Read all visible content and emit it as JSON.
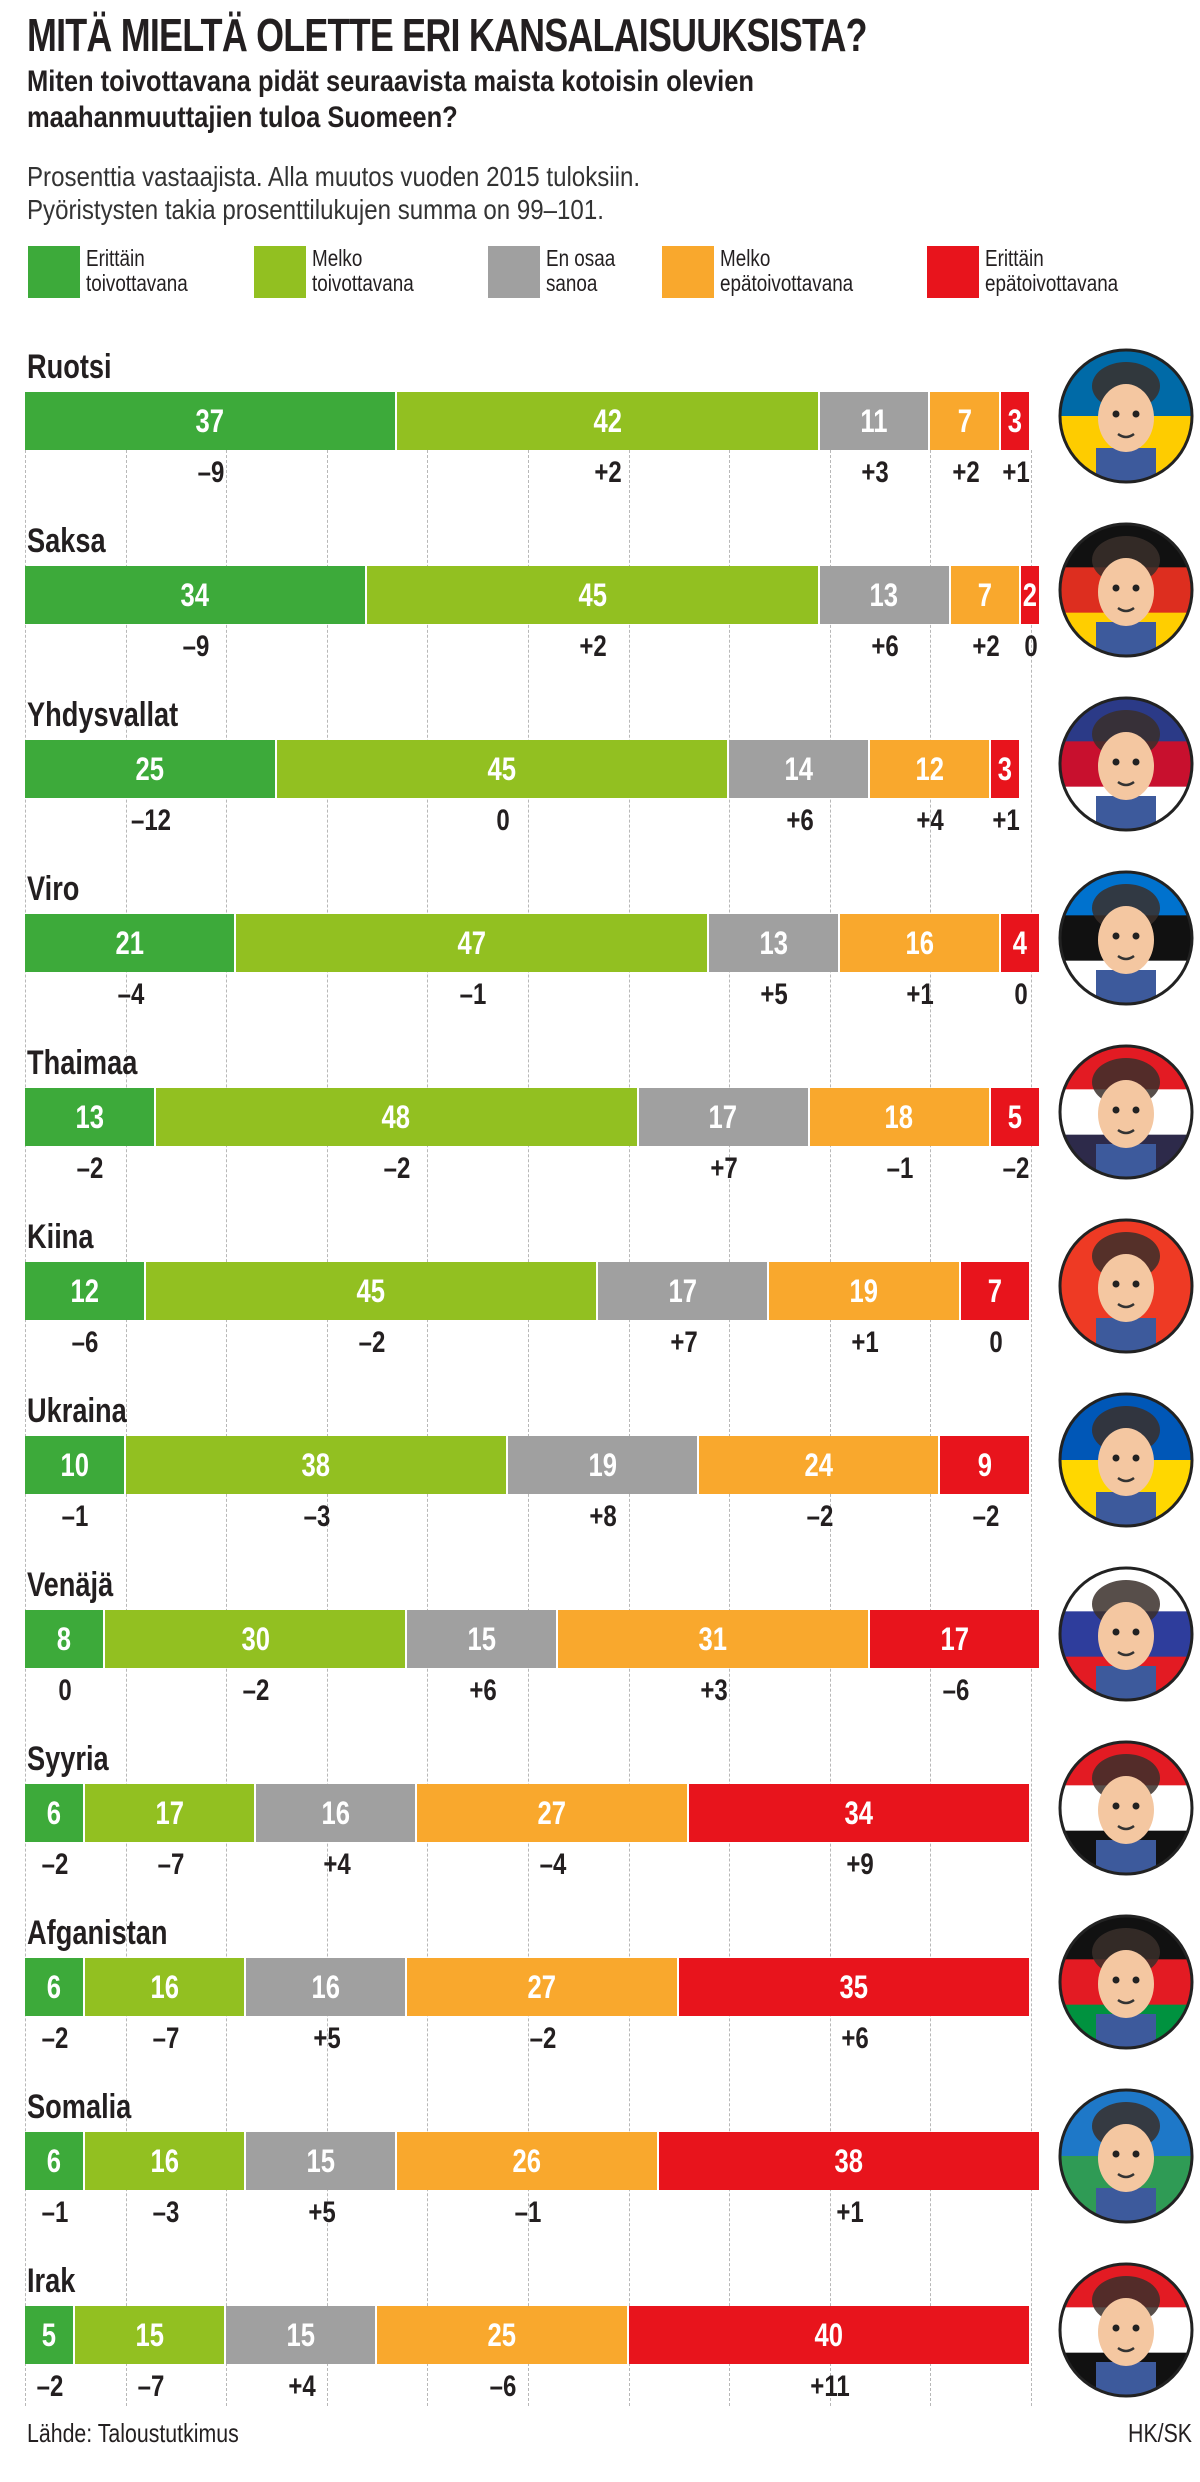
{
  "title": "MITÄ MIELTÄ OLETTE ERI KANSALAISUUKSISTA?",
  "subtitle_line1": "Miten toivottavana pidät seuraavista maista kotoisin olevien",
  "subtitle_line2": "maahanmuuttajien tuloa Suomeen?",
  "note_line1": "Prosenttia vastaajista. Alla muutos vuoden 2015 tuloksiin.",
  "note_line2": "Pyöristysten takia prosenttilukujen summa on 99–101.",
  "footer": {
    "source": "Lähde: Taloustutkimus",
    "credit": "HK/SK"
  },
  "chart_data": {
    "type": "bar",
    "orientation": "horizontal-stacked",
    "title": "MITÄ MIELTÄ OLETTE ERI KANSALAISUUKSISTA?",
    "unit": "%",
    "xlim": [
      0,
      100
    ],
    "legend_position": "top",
    "series": [
      {
        "name": "Erittäin\ntoivottavana",
        "color": "#3daa3a"
      },
      {
        "name": "Melko\ntoivottavana",
        "color": "#92c021"
      },
      {
        "name": "En osaa\nsanoa",
        "color": "#a0a0a0"
      },
      {
        "name": "Melko\nepätoivottavana",
        "color": "#f9a82d"
      },
      {
        "name": "Erittäin\nepätoivottavana",
        "color": "#e8141c"
      }
    ],
    "categories": [
      {
        "name": "Ruotsi",
        "values": [
          37,
          42,
          11,
          7,
          3
        ],
        "changes": [
          "–9",
          "+2",
          "+3",
          "+2",
          "+1"
        ],
        "flag": [
          "#006aa7",
          "#fecc00"
        ]
      },
      {
        "name": "Saksa",
        "values": [
          34,
          45,
          13,
          7,
          2
        ],
        "changes": [
          "–9",
          "+2",
          "+6",
          "+2",
          "0"
        ],
        "flag": [
          "#111111",
          "#dd2e1f",
          "#ffce00"
        ]
      },
      {
        "name": "Yhdysvallat",
        "values": [
          25,
          45,
          14,
          12,
          3
        ],
        "changes": [
          "–12",
          "0",
          "+6",
          "+4",
          "+1"
        ],
        "flag": [
          "#2b3a87",
          "#c8102e",
          "#ffffff"
        ]
      },
      {
        "name": "Viro",
        "values": [
          21,
          47,
          13,
          16,
          4
        ],
        "changes": [
          "–4",
          "–1",
          "+5",
          "+1",
          "0"
        ],
        "flag": [
          "#0072ce",
          "#111111",
          "#ffffff"
        ]
      },
      {
        "name": "Thaimaa",
        "values": [
          13,
          48,
          17,
          18,
          5
        ],
        "changes": [
          "–2",
          "–2",
          "+7",
          "–1",
          "–2"
        ],
        "flag": [
          "#e31b23",
          "#ffffff",
          "#2d2a4a"
        ]
      },
      {
        "name": "Kiina",
        "values": [
          12,
          45,
          17,
          19,
          7
        ],
        "changes": [
          "–6",
          "–2",
          "+7",
          "+1",
          "0"
        ],
        "flag": [
          "#ee3a24",
          "#ee3a24"
        ]
      },
      {
        "name": "Ukraina",
        "values": [
          10,
          38,
          19,
          24,
          9
        ],
        "changes": [
          "–1",
          "–3",
          "+8",
          "–2",
          "–2"
        ],
        "flag": [
          "#0057b7",
          "#ffd700"
        ]
      },
      {
        "name": "Venäjä",
        "values": [
          8,
          30,
          15,
          31,
          17
        ],
        "changes": [
          "0",
          "–2",
          "+6",
          "+3",
          "–6"
        ],
        "flag": [
          "#ffffff",
          "#2e3d9c",
          "#e31b23"
        ]
      },
      {
        "name": "Syyria",
        "values": [
          6,
          17,
          16,
          27,
          34
        ],
        "changes": [
          "–2",
          "–7",
          "+4",
          "–4",
          "+9"
        ],
        "flag": [
          "#e31b23",
          "#ffffff",
          "#111111"
        ]
      },
      {
        "name": "Afganistan",
        "values": [
          6,
          16,
          16,
          27,
          35
        ],
        "changes": [
          "–2",
          "–7",
          "+5",
          "–2",
          "+6"
        ],
        "flag": [
          "#111111",
          "#e31b23",
          "#00923f"
        ]
      },
      {
        "name": "Somalia",
        "values": [
          6,
          16,
          15,
          26,
          38
        ],
        "changes": [
          "–1",
          "–3",
          "+5",
          "–1",
          "+1"
        ],
        "flag": [
          "#1e78c8",
          "#2f9b55"
        ]
      },
      {
        "name": "Irak",
        "values": [
          5,
          15,
          15,
          25,
          40
        ],
        "changes": [
          "–2",
          "–7",
          "+4",
          "–6",
          "+11"
        ],
        "flag": [
          "#e31b23",
          "#ffffff",
          "#111111"
        ]
      }
    ]
  }
}
